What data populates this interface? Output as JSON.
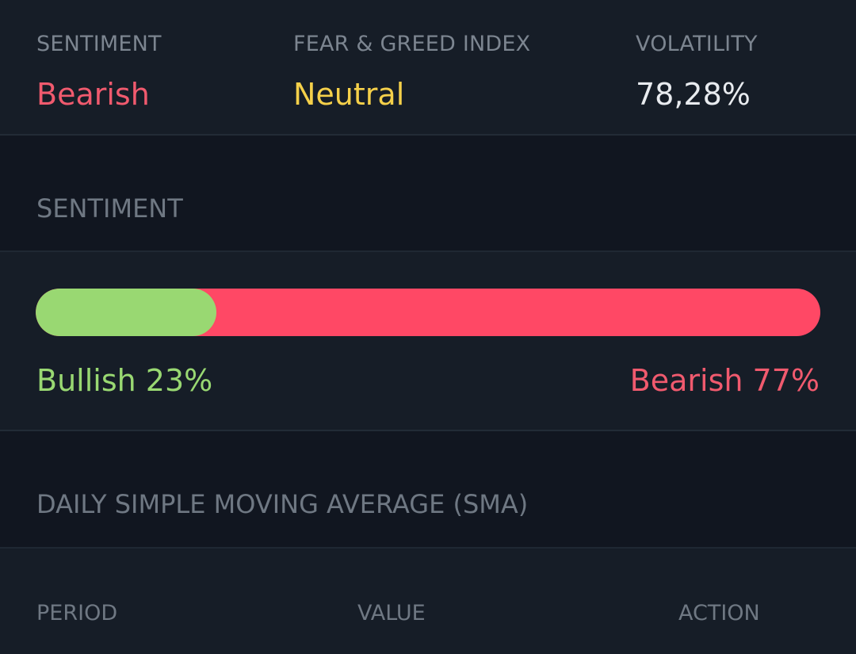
{
  "colors": {
    "bearish": "#f05a6e",
    "neutral": "#f5d04a",
    "bullish": "#99d872",
    "bar_bullish": "#99d872",
    "bar_bearish": "#ff4865",
    "muted_text": "#7c8590",
    "value_text": "#e8ebef"
  },
  "overview": {
    "sentiment_label": "SENTIMENT",
    "sentiment_value": "Bearish",
    "fear_greed_label": "FEAR & GREED INDEX",
    "fear_greed_value": "Neutral",
    "volatility_label": "VOLATILITY",
    "volatility_value": "78,28%"
  },
  "sentiment_section": {
    "title": "SENTIMENT",
    "bullish_percent": 23,
    "bearish_percent": 77,
    "bullish_label": "Bullish 23%",
    "bearish_label": "Bearish 77%"
  },
  "sma_section": {
    "title": "DAILY SIMPLE MOVING AVERAGE (SMA)",
    "columns": [
      "PERIOD",
      "VALUE",
      "ACTION"
    ]
  }
}
